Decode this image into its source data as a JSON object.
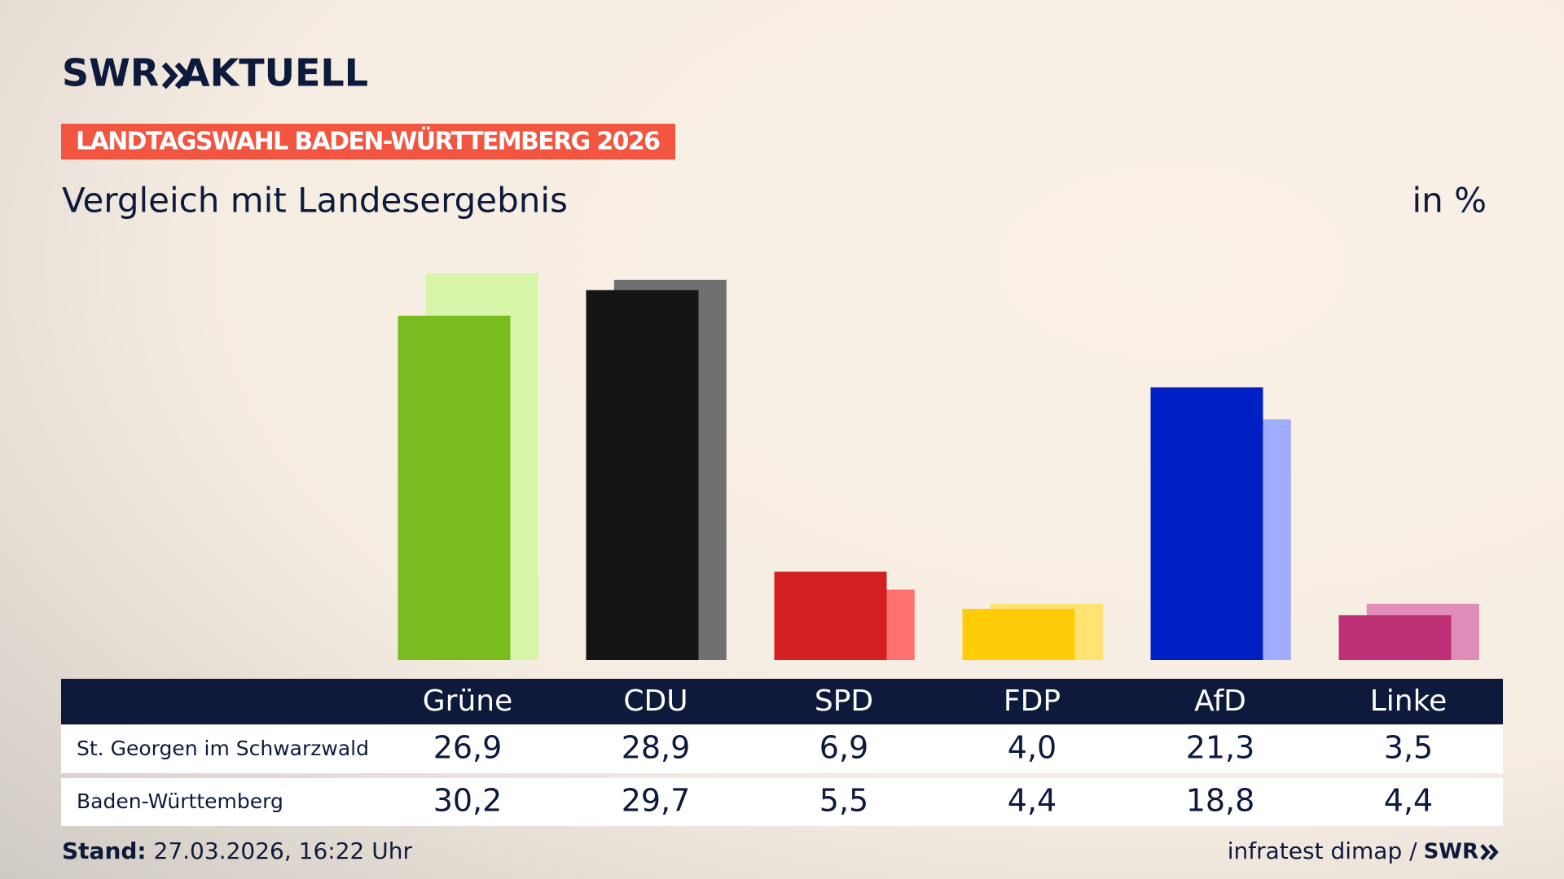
{
  "header": {
    "logo": "SWR",
    "product": "AKTUELL"
  },
  "chart_data": {
    "type": "bar",
    "badge": "LANDTAGSWAHL BADEN-WÜRTTEMBERG 2026",
    "title": "Vergleich mit Landesergebnis",
    "unit": "in %",
    "categories": [
      "Grüne",
      "CDU",
      "SPD",
      "FDP",
      "AfD",
      "Linke"
    ],
    "series": [
      {
        "name": "St. Georgen im Schwarzwald",
        "colors": [
          "#78bc1e",
          "#141414",
          "#d42020",
          "#ffcc0a",
          "#0020c6",
          "#be3075"
        ],
        "values": [
          26.9,
          28.9,
          6.9,
          4.0,
          21.3,
          3.5
        ],
        "value_labels": [
          "26,9",
          "28,9",
          "6,9",
          "4,0",
          "21,3",
          "3,5"
        ]
      },
      {
        "name": "Baden-Württemberg",
        "colors": [
          "#d6f5a9",
          "#707070",
          "#ff7070",
          "#ffe270",
          "#a0adff",
          "#e08bb8"
        ],
        "values": [
          30.2,
          29.7,
          5.5,
          4.4,
          18.8,
          4.4
        ],
        "value_labels": [
          "30,2",
          "29,7",
          "5,5",
          "4,4",
          "18,8",
          "4,4"
        ]
      }
    ]
  },
  "footer": {
    "stand_label": "Stand:",
    "stand": "27.03.2026, 16:22 Uhr",
    "source": "infratest dimap /",
    "source_logo": "SWR"
  }
}
